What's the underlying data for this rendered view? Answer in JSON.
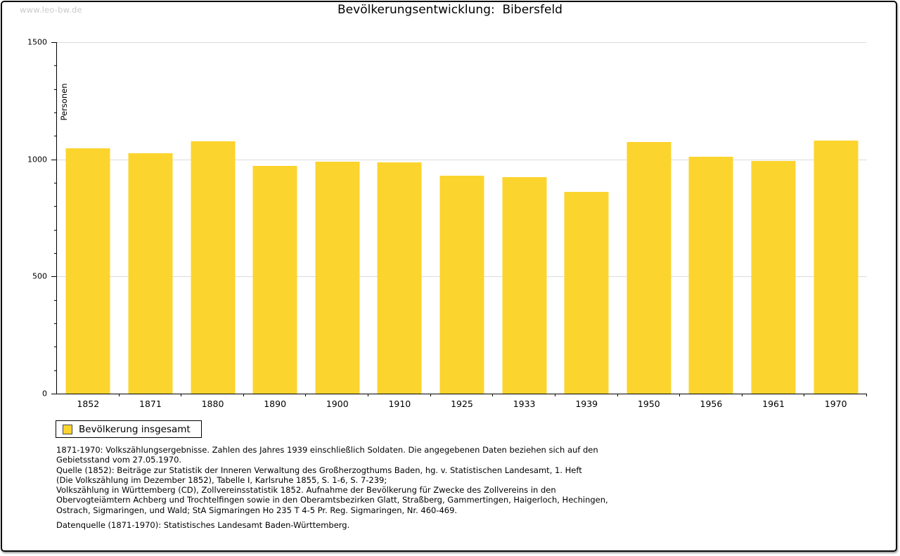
{
  "watermark": "www.leo-bw.de",
  "title": "Bevölkerungsentwicklung:  Bibersfeld",
  "chart_data": {
    "type": "bar",
    "title": "Bevölkerungsentwicklung: Bibersfeld",
    "xlabel": "",
    "ylabel": "Personen",
    "ylim": [
      0,
      1500
    ],
    "ytick_interval": 500,
    "minor_tick_interval": 100,
    "grid": true,
    "legend_position": "bottom-left",
    "bar_color": "#FCD42E",
    "categories": [
      "1852",
      "1871",
      "1880",
      "1890",
      "1900",
      "1910",
      "1925",
      "1933",
      "1939",
      "1950",
      "1956",
      "1961",
      "1970"
    ],
    "series": [
      {
        "name": "Bevölkerung insgesamt",
        "values": [
          1048,
          1027,
          1077,
          972,
          990,
          988,
          931,
          924,
          862,
          1074,
          1012,
          994,
          1080
        ]
      }
    ]
  },
  "legend": {
    "label": "Bevölkerung insgesamt"
  },
  "footnotes": [
    "1871-1970: Volkszählungsergebnisse. Zahlen des Jahres 1939 einschließlich Soldaten. Die angegebenen Daten beziehen sich auf den",
    "Gebietsstand vom 27.05.1970.",
    "Quelle (1852): Beiträge zur Statistik der Inneren Verwaltung des Großherzogthums Baden, hg. v. Statistischen Landesamt, 1. Heft",
    "(Die Volkszählung im Dezember 1852), Tabelle I, Karlsruhe 1855, S. 1-6, S. 7-239;",
    "Volkszählung in Württemberg (CD), Zollvereinsstatistik 1852. Aufnahme der Bevölkerung für Zwecke des Zollvereins in den",
    "Obervogteiämtern Achberg und Trochtelfingen sowie in den Oberamtsbezirken Glatt, Straßberg, Gammertingen, Haigerloch, Hechingen,",
    "Ostrach, Sigmaringen, und Wald; StA Sigmaringen Ho 235 T 4-5 Pr. Reg. Sigmaringen, Nr. 460-469."
  ],
  "datasource": "Datenquelle (1871-1970): Statistisches Landesamt Baden-Württemberg."
}
